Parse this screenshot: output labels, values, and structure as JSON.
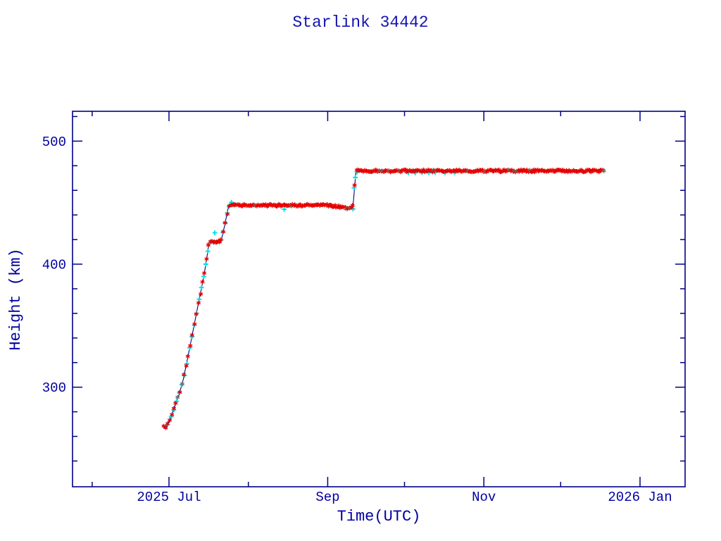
{
  "window": {
    "background": "#ffffff"
  },
  "colors": {
    "frame": "#000088",
    "text": "#0000a0",
    "title_text": "#1414b4",
    "line": "#000090",
    "series_red": "#e60000",
    "series_cyan": "#00dfe6",
    "overlap_speck": "#6e6e6e"
  },
  "chart_data": {
    "type": "scatter",
    "title": "Starlink 34442",
    "xlabel": "Time(UTC)",
    "ylabel": "Height (km)",
    "x_unit": "days relative to 2025-07-01",
    "xlim_days": [
      -37.7,
      201.6
    ],
    "ylim_km": [
      220,
      523
    ],
    "grid": "off",
    "legend": "none",
    "x_ticks_major": [
      {
        "day": 0,
        "label": "2025 Jul"
      },
      {
        "day": 62,
        "label": "Sep"
      },
      {
        "day": 123,
        "label": "Nov"
      },
      {
        "day": 184,
        "label": "2026 Jan"
      }
    ],
    "x_ticks_minor_days": [
      -30,
      31,
      92,
      153
    ],
    "y_ticks_major": [
      {
        "km": 300,
        "label": "300"
      },
      {
        "km": 400,
        "label": "400"
      },
      {
        "km": 500,
        "label": "500"
      }
    ],
    "y_ticks_minor_km": [
      240,
      260,
      280,
      320,
      340,
      360,
      380,
      420,
      440,
      460,
      480,
      520
    ],
    "series": [
      {
        "name": "height-primary",
        "color": "#e60000",
        "marker": "asterisk",
        "connect_line": true,
        "profile_keypoints": [
          [
            -2.1,
            268.5
          ],
          [
            -1.7,
            266.8
          ],
          [
            -1.0,
            268.2
          ],
          [
            0,
            272
          ],
          [
            2,
            283
          ],
          [
            4,
            294.5
          ],
          [
            5.5,
            305.5
          ],
          [
            8,
            331
          ],
          [
            11,
            363
          ],
          [
            13.7,
            391
          ],
          [
            15.0,
            408
          ],
          [
            15.6,
            416.5
          ],
          [
            15.9,
            418.0
          ],
          [
            20.0,
            418.0
          ],
          [
            20.6,
            421
          ],
          [
            21.8,
            432
          ],
          [
            23.0,
            444.5
          ],
          [
            23.5,
            447.8
          ],
          [
            63.0,
            447.8
          ],
          [
            70.5,
            445.4
          ],
          [
            71.7,
            445.8
          ],
          [
            72.1,
            452
          ],
          [
            72.6,
            465
          ],
          [
            73.0,
            474.8
          ],
          [
            73.4,
            475.8
          ],
          [
            170,
            475.8
          ]
        ]
      },
      {
        "name": "height-secondary",
        "color": "#00dfe6",
        "marker": "plus",
        "connect_line": false,
        "points": [
          [
            -0.6,
            269.5
          ],
          [
            0.9,
            276
          ],
          [
            1.9,
            281.5
          ],
          [
            3.0,
            288.5
          ],
          [
            4.1,
            295.5
          ],
          [
            5.0,
            302
          ],
          [
            6.1,
            309.5
          ],
          [
            7.0,
            319
          ],
          [
            8.1,
            332
          ],
          [
            9.0,
            341
          ],
          [
            9.9,
            350.5
          ],
          [
            10.8,
            360
          ],
          [
            11.8,
            371.5
          ],
          [
            12.7,
            381
          ],
          [
            13.6,
            390
          ],
          [
            14.4,
            400
          ],
          [
            15.2,
            410.5
          ],
          [
            15.8,
            417
          ],
          [
            16.6,
            418.3
          ],
          [
            17.4,
            417.7
          ],
          [
            17.9,
            425.5
          ],
          [
            18.7,
            418.1
          ],
          [
            19.6,
            418.2
          ],
          [
            20.4,
            419.8
          ],
          [
            21.1,
            426
          ],
          [
            22.0,
            433.5
          ],
          [
            22.8,
            441.5
          ],
          [
            23.5,
            447.2
          ],
          [
            24.4,
            450.3
          ],
          [
            25.6,
            448.1
          ],
          [
            45.0,
            444.6
          ],
          [
            71.9,
            444.8
          ],
          [
            72.3,
            462
          ],
          [
            72.8,
            470.5
          ],
          [
            73.5,
            474.9
          ],
          [
            93.5,
            474.4
          ],
          [
            96.2,
            474.2
          ],
          [
            98.8,
            474.5
          ],
          [
            101.5,
            474.3
          ],
          [
            104.0,
            474.6
          ],
          [
            107.8,
            474.4
          ],
          [
            111.5,
            474.5
          ]
        ]
      }
    ]
  }
}
